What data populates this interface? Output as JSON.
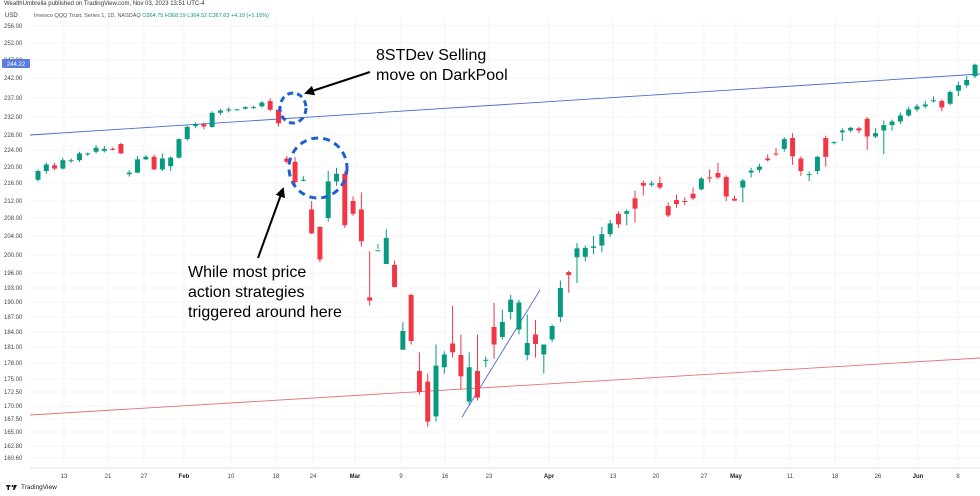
{
  "header": {
    "published": "WealthUmbrella published on TradingView.com, Nov 03, 2023 13:51 UTC-4",
    "currency": "USD",
    "symbol": "Invesco QQQ Trust, Series 1, 1D, NASDAQ",
    "open": "O364.75",
    "high": "H368.19",
    "low": "L364.52",
    "close": "C367.63",
    "change": "+4.19 (+1.15%)"
  },
  "footer": {
    "brand": "TradingView"
  },
  "price_badge": "244.22",
  "annotations": {
    "top_line1": "8STDev Selling",
    "top_line2": "move on DarkPool",
    "left_line1": "While most price",
    "left_line2": "action strategies",
    "left_line3": "triggered around here"
  },
  "colors": {
    "up": "#089981",
    "down": "#f23645",
    "blue_line": "#4a6cd4",
    "red_line": "#e57373",
    "circle": "#1e5fd4"
  },
  "chart_data": {
    "type": "candlestick",
    "y_ticks": [
      256.0,
      252.0,
      247.0,
      242.0,
      237.0,
      232.0,
      228.0,
      224.0,
      220.0,
      216.0,
      212.0,
      208.0,
      204.0,
      200.0,
      196.0,
      193.0,
      190.0,
      187.0,
      184.0,
      181.0,
      178.0,
      175.0,
      172.5,
      170.0,
      167.5,
      165.0,
      162.8,
      160.6
    ],
    "x_ticks": [
      {
        "label": "13",
        "bold": false
      },
      {
        "label": "21",
        "bold": false
      },
      {
        "label": "27",
        "bold": false
      },
      {
        "label": "Feb",
        "bold": true
      },
      {
        "label": "10",
        "bold": false
      },
      {
        "label": "18",
        "bold": false
      },
      {
        "label": "24",
        "bold": false
      },
      {
        "label": "Mar",
        "bold": true
      },
      {
        "label": "9",
        "bold": false
      },
      {
        "label": "16",
        "bold": false
      },
      {
        "label": "23",
        "bold": false
      },
      {
        "label": "Apr",
        "bold": true
      },
      {
        "label": "13",
        "bold": false
      },
      {
        "label": "20",
        "bold": false
      },
      {
        "label": "27",
        "bold": false
      },
      {
        "label": "May",
        "bold": true
      },
      {
        "label": "11",
        "bold": false
      },
      {
        "label": "18",
        "bold": false
      },
      {
        "label": "26",
        "bold": false
      },
      {
        "label": "Jun",
        "bold": true
      },
      {
        "label": "8",
        "bold": false
      }
    ],
    "candles": [
      [
        216.8,
        219.4,
        216.4,
        219.0
      ],
      [
        219.0,
        221.0,
        218.3,
        220.6
      ],
      [
        220.4,
        221.0,
        219.2,
        219.6
      ],
      [
        219.6,
        222.2,
        219.4,
        221.6
      ],
      [
        221.4,
        222.0,
        221.0,
        221.6
      ],
      [
        221.6,
        223.6,
        221.2,
        223.2
      ],
      [
        223.0,
        223.4,
        222.6,
        223.2
      ],
      [
        223.6,
        225.3,
        223.2,
        224.6
      ],
      [
        223.8,
        225.1,
        223.4,
        224.3
      ],
      [
        224.3,
        224.7,
        223.9,
        224.1
      ],
      [
        225.6,
        225.9,
        223.0,
        223.2
      ],
      [
        218.2,
        219.2,
        217.6,
        218.6
      ],
      [
        218.6,
        222.6,
        218.4,
        221.8
      ],
      [
        221.8,
        222.8,
        221.6,
        222.4
      ],
      [
        222.4,
        222.9,
        219.3,
        219.4
      ],
      [
        219.4,
        223.2,
        219.0,
        222.0
      ],
      [
        220.2,
        222.5,
        219.0,
        222.2
      ],
      [
        222.2,
        227.1,
        222.0,
        226.9
      ],
      [
        226.9,
        230.1,
        226.5,
        229.8
      ],
      [
        230.0,
        230.8,
        229.5,
        230.4
      ],
      [
        230.4,
        230.8,
        229.3,
        229.9
      ],
      [
        229.8,
        233.5,
        229.6,
        233.1
      ],
      [
        233.1,
        234.1,
        232.5,
        233.7
      ],
      [
        233.7,
        234.6,
        233.2,
        234.0
      ],
      [
        234.0,
        234.2,
        233.8,
        234.0
      ],
      [
        234.2,
        234.8,
        233.9,
        234.6
      ],
      [
        234.6,
        235.0,
        234.2,
        234.6
      ],
      [
        234.8,
        236.2,
        234.5,
        235.8
      ],
      [
        236.2,
        236.9,
        233.5,
        233.9
      ],
      [
        233.9,
        234.3,
        229.9,
        230.6
      ],
      [
        222.0,
        222.6,
        220.8,
        221.2
      ],
      [
        221.2,
        222.3,
        215.5,
        216.2
      ],
      [
        216.8,
        217.7,
        216.4,
        216.8
      ],
      [
        210.0,
        212.0,
        204.4,
        204.6
      ],
      [
        206.0,
        206.2,
        198.4,
        199.0
      ],
      [
        208.0,
        219.1,
        207.2,
        216.4
      ],
      [
        216.4,
        219.8,
        215.4,
        218.3
      ],
      [
        218.3,
        219.0,
        205.8,
        206.4
      ],
      [
        212.0,
        213.0,
        208.5,
        209.0
      ],
      [
        210.0,
        213.9,
        201.8,
        202.9
      ],
      [
        191.0,
        200.8,
        189.3,
        190.3
      ],
      [
        201.0,
        202.3,
        201.3,
        201.0
      ],
      [
        198.0,
        205.5,
        198.0,
        203.6
      ],
      [
        197.8,
        198.8,
        193.1,
        193.2
      ],
      [
        180.5,
        186.0,
        180.5,
        184.2
      ],
      [
        191.5,
        191.8,
        181.5,
        182.2
      ],
      [
        176.5,
        180.0,
        172.0,
        172.5
      ],
      [
        174.5,
        176.0,
        166.0,
        167.0
      ],
      [
        168.0,
        181.5,
        167.0,
        177.5
      ],
      [
        177.2,
        180.2,
        176.0,
        179.6
      ],
      [
        181.7,
        189.2,
        179.0,
        180.0
      ],
      [
        179.5,
        183.5,
        173.0,
        175.5
      ],
      [
        170.8,
        180.0,
        170.2,
        177.2
      ],
      [
        176.5,
        183.5,
        171.0,
        171.5
      ],
      [
        178.5,
        179.2,
        177.2,
        178.6
      ],
      [
        185.0,
        189.8,
        178.8,
        181.5
      ],
      [
        183.0,
        188.5,
        182.5,
        186.0
      ],
      [
        188.0,
        191.5,
        186.5,
        190.5
      ],
      [
        184.5,
        190.5,
        183.5,
        189.9
      ],
      [
        179.5,
        187.5,
        178.5,
        181.8
      ],
      [
        183.5,
        186.4,
        179.0,
        181.6
      ],
      [
        179.6,
        181.5,
        176.0,
        181.5
      ],
      [
        182.5,
        185.5,
        182.0,
        185.2
      ],
      [
        187.0,
        194.5,
        186.0,
        193.0
      ],
      [
        196.2,
        196.5,
        192.0,
        195.6
      ],
      [
        199.5,
        202.5,
        194.0,
        201.4
      ],
      [
        199.6,
        202.0,
        198.6,
        201.5
      ],
      [
        201.5,
        204.0,
        200.2,
        201.8
      ],
      [
        202.0,
        206.0,
        200.6,
        204.4
      ],
      [
        204.4,
        207.6,
        203.8,
        206.8
      ],
      [
        209.0,
        209.6,
        205.8,
        206.6
      ],
      [
        209.0,
        210.0,
        206.4,
        209.6
      ],
      [
        212.6,
        214.3,
        207.0,
        210.2
      ],
      [
        216.0,
        216.6,
        213.2,
        215.4
      ],
      [
        215.6,
        216.5,
        215.2,
        215.9
      ],
      [
        216.0,
        217.6,
        214.6,
        215.0
      ],
      [
        210.8,
        211.7,
        208.2,
        208.6
      ],
      [
        212.2,
        213.4,
        210.4,
        211.3
      ],
      [
        212.0,
        212.8,
        211.0,
        211.9
      ],
      [
        213.6,
        215.0,
        212.2,
        212.6
      ],
      [
        214.6,
        217.5,
        214.4,
        217.1
      ],
      [
        217.4,
        219.4,
        216.1,
        217.3
      ],
      [
        218.5,
        221.0,
        217.0,
        217.4
      ],
      [
        217.5,
        217.9,
        212.0,
        213.0
      ],
      [
        212.5,
        213.2,
        211.9,
        212.1
      ],
      [
        215.0,
        217.0,
        211.7,
        216.6
      ],
      [
        218.6,
        219.8,
        217.4,
        219.1
      ],
      [
        219.3,
        220.8,
        218.6,
        220.1
      ],
      [
        222.0,
        223.0,
        221.3,
        221.6
      ],
      [
        223.2,
        224.5,
        222.6,
        223.1
      ],
      [
        224.3,
        227.4,
        223.6,
        226.9
      ],
      [
        227.2,
        228.4,
        220.5,
        222.5
      ],
      [
        222.0,
        222.5,
        217.8,
        219.0
      ],
      [
        218.0,
        218.9,
        216.5,
        218.2
      ],
      [
        219.0,
        222.6,
        218.2,
        222.4
      ],
      [
        227.2,
        227.8,
        220.1,
        222.4
      ],
      [
        226.1,
        226.3,
        225.5,
        226.1
      ],
      [
        228.6,
        229.5,
        226.4,
        229.0
      ],
      [
        229.0,
        229.8,
        228.6,
        229.6
      ],
      [
        229.5,
        229.8,
        228.4,
        229.0
      ],
      [
        231.6,
        232.0,
        224.1,
        227.6
      ],
      [
        227.6,
        229.5,
        227.2,
        228.4
      ],
      [
        229.0,
        231.2,
        223.0,
        230.2
      ],
      [
        230.2,
        231.4,
        229.0,
        231.0
      ],
      [
        231.0,
        233.2,
        230.4,
        232.4
      ],
      [
        232.4,
        234.8,
        232.1,
        234.0
      ],
      [
        234.0,
        235.4,
        233.4,
        234.8
      ],
      [
        234.8,
        236.3,
        234.3,
        235.3
      ],
      [
        236.3,
        237.4,
        235.8,
        236.4
      ],
      [
        236.2,
        236.6,
        233.5,
        234.5
      ],
      [
        235.5,
        238.9,
        235.1,
        238.5
      ],
      [
        238.8,
        241.1,
        237.5,
        240.2
      ],
      [
        240.2,
        242.5,
        239.6,
        241.5
      ],
      [
        242.5,
        246.0,
        242.0,
        245.7
      ]
    ]
  }
}
